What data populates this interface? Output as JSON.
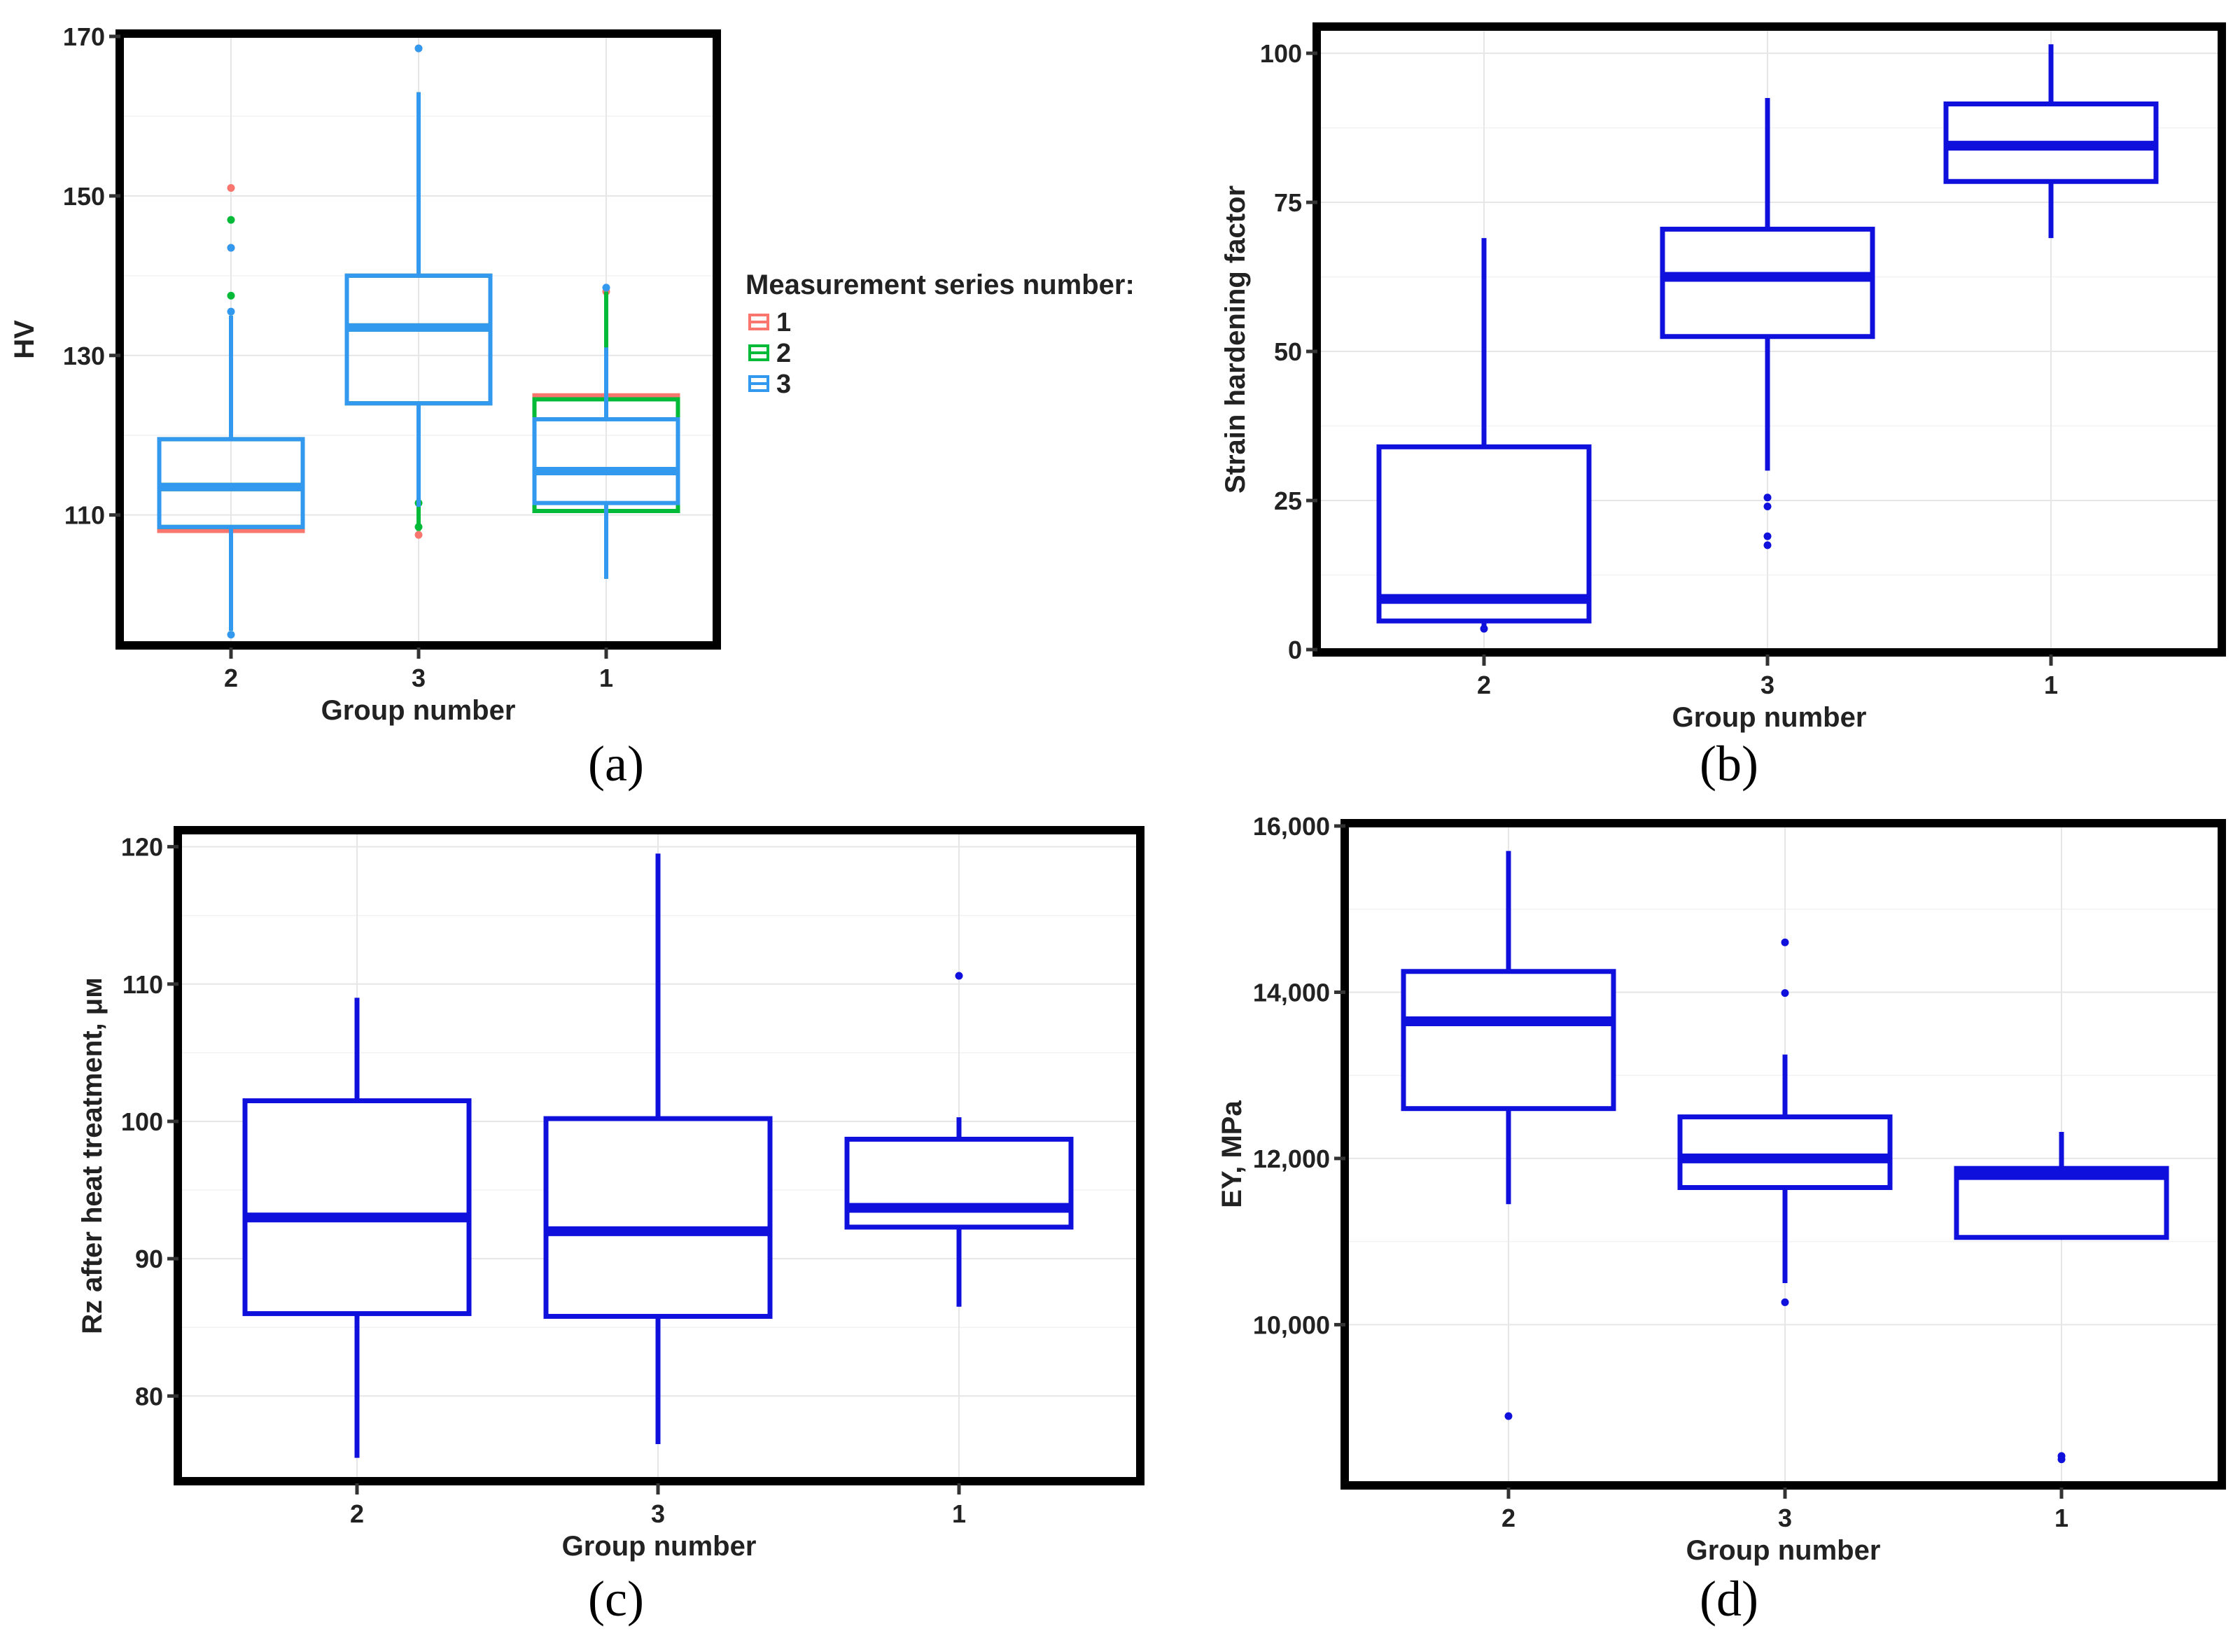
{
  "colors": {
    "series_1": "#F8766D",
    "series_2": "#00BA38",
    "series_3": "#3399EE",
    "single": "#1010DD",
    "frame": "#000000",
    "grid": "#E6E6E6"
  },
  "chart_data": [
    {
      "id": "a",
      "panel_label": "(a)",
      "type": "box",
      "xlabel": "Group number",
      "ylabel": "HV",
      "categories": [
        "2",
        "3",
        "1"
      ],
      "ylim": [
        94,
        170
      ],
      "yticks": [
        110,
        130,
        150,
        170
      ],
      "ytick_labels": [
        "110",
        "130",
        "150",
        "170"
      ],
      "legend": {
        "title": "Measurement series number:",
        "entries": [
          "1",
          "2",
          "3"
        ],
        "colors": [
          "#F8766D",
          "#00BA38",
          "#3399EE"
        ]
      },
      "series": [
        {
          "name": "1",
          "color": "#F8766D",
          "boxes": [
            {
              "category": "2",
              "whisker_low": 95.5,
              "q1": 108,
              "median": 113.5,
              "q3": 119.5,
              "whisker_high": 135,
              "outliers": [
                151,
                143.5
              ]
            },
            {
              "category": "3",
              "whisker_low": 108,
              "q1": 124,
              "median": 133.5,
              "q3": 140,
              "whisker_high": 163,
              "outliers": [
                107.5,
                168.5
              ]
            },
            {
              "category": "1",
              "whisker_low": 102,
              "q1": 110.5,
              "median": 115.5,
              "q3": 125,
              "whisker_high": 131,
              "outliers": [
                138
              ]
            }
          ]
        },
        {
          "name": "2",
          "color": "#00BA38",
          "boxes": [
            {
              "category": "2",
              "whisker_low": 95.5,
              "q1": 108.5,
              "median": 113.5,
              "q3": 119.5,
              "whisker_high": 135,
              "outliers": [
                147,
                137.5
              ]
            },
            {
              "category": "3",
              "whisker_low": 108,
              "q1": 124,
              "median": 133.5,
              "q3": 140,
              "whisker_high": 163,
              "outliers": [
                108.5,
                111.5
              ]
            },
            {
              "category": "1",
              "whisker_low": 102,
              "q1": 110.5,
              "median": 115.5,
              "q3": 124.5,
              "whisker_high": 138,
              "outliers": []
            }
          ]
        },
        {
          "name": "3",
          "color": "#3399EE",
          "boxes": [
            {
              "category": "2",
              "whisker_low": 95.5,
              "q1": 108.5,
              "median": 113.5,
              "q3": 119.5,
              "whisker_high": 135,
              "outliers": [
                143.5,
                135.5,
                95
              ]
            },
            {
              "category": "3",
              "whisker_low": 111,
              "q1": 124,
              "median": 133.5,
              "q3": 140,
              "whisker_high": 163,
              "outliers": [
                168.5
              ]
            },
            {
              "category": "1",
              "whisker_low": 102,
              "q1": 111.5,
              "median": 115.5,
              "q3": 122,
              "whisker_high": 131,
              "outliers": [
                138.5
              ]
            }
          ]
        }
      ]
    },
    {
      "id": "b",
      "panel_label": "(b)",
      "type": "box",
      "xlabel": "Group number",
      "ylabel": "Strain hardening factor",
      "categories": [
        "2",
        "3",
        "1"
      ],
      "ylim": [
        0,
        104
      ],
      "yticks": [
        0,
        25,
        50,
        75,
        100
      ],
      "ytick_labels": [
        "0",
        "25",
        "50",
        "75",
        "100"
      ],
      "series": [
        {
          "name": "",
          "color": "#1010DD",
          "boxes": [
            {
              "category": "2",
              "whisker_low": 4,
              "q1": 4.8,
              "median": 8.5,
              "q3": 34,
              "whisker_high": 69,
              "outliers": [
                3.5
              ]
            },
            {
              "category": "3",
              "whisker_low": 30,
              "q1": 52.5,
              "median": 62.5,
              "q3": 70.5,
              "whisker_high": 92.5,
              "outliers": [
                25.5,
                24,
                19,
                17.5
              ]
            },
            {
              "category": "1",
              "whisker_low": 69,
              "q1": 78.5,
              "median": 84.5,
              "q3": 91.5,
              "whisker_high": 101.5,
              "outliers": []
            }
          ]
        }
      ]
    },
    {
      "id": "c",
      "panel_label": "(c)",
      "type": "box",
      "xlabel": "Group number",
      "ylabel": "Rz after heat treatment, μм",
      "categories": [
        "2",
        "3",
        "1"
      ],
      "ylim": [
        74,
        121
      ],
      "yticks": [
        80,
        90,
        100,
        110,
        120
      ],
      "ytick_labels": [
        "80",
        "90",
        "100",
        "110",
        "120"
      ],
      "series": [
        {
          "name": "",
          "color": "#1010DD",
          "boxes": [
            {
              "category": "2",
              "whisker_low": 75.5,
              "q1": 86,
              "median": 93,
              "q3": 101.5,
              "whisker_high": 109,
              "outliers": []
            },
            {
              "category": "3",
              "whisker_low": 76.5,
              "q1": 85.8,
              "median": 92,
              "q3": 100.2,
              "whisker_high": 119.5,
              "outliers": []
            },
            {
              "category": "1",
              "whisker_low": 86.5,
              "q1": 92.3,
              "median": 93.7,
              "q3": 98.7,
              "whisker_high": 100.3,
              "outliers": [
                110.6
              ]
            }
          ]
        }
      ]
    },
    {
      "id": "d",
      "panel_label": "(d)",
      "type": "box",
      "xlabel": "Group number",
      "ylabel": "EY, MPa",
      "categories": [
        "2",
        "3",
        "1"
      ],
      "ylim": [
        8100,
        16000
      ],
      "yticks": [
        10000,
        12000,
        14000,
        16000
      ],
      "ytick_labels": [
        "10,000",
        "12,000",
        "14,000",
        "16,000"
      ],
      "series": [
        {
          "name": "",
          "color": "#1010DD",
          "boxes": [
            {
              "category": "2",
              "whisker_low": 11450,
              "q1": 12600,
              "median": 13650,
              "q3": 14250,
              "whisker_high": 15700,
              "outliers": [
                8900
              ]
            },
            {
              "category": "3",
              "whisker_low": 10500,
              "q1": 11650,
              "median": 12000,
              "q3": 12500,
              "whisker_high": 13250,
              "outliers": [
                14600,
                13990,
                10270
              ]
            },
            {
              "category": "1",
              "whisker_low": 11050,
              "q1": 11050,
              "median": 11800,
              "q3": 11880,
              "whisker_high": 12320,
              "outliers": [
                8380,
                8420
              ]
            }
          ]
        }
      ]
    }
  ]
}
